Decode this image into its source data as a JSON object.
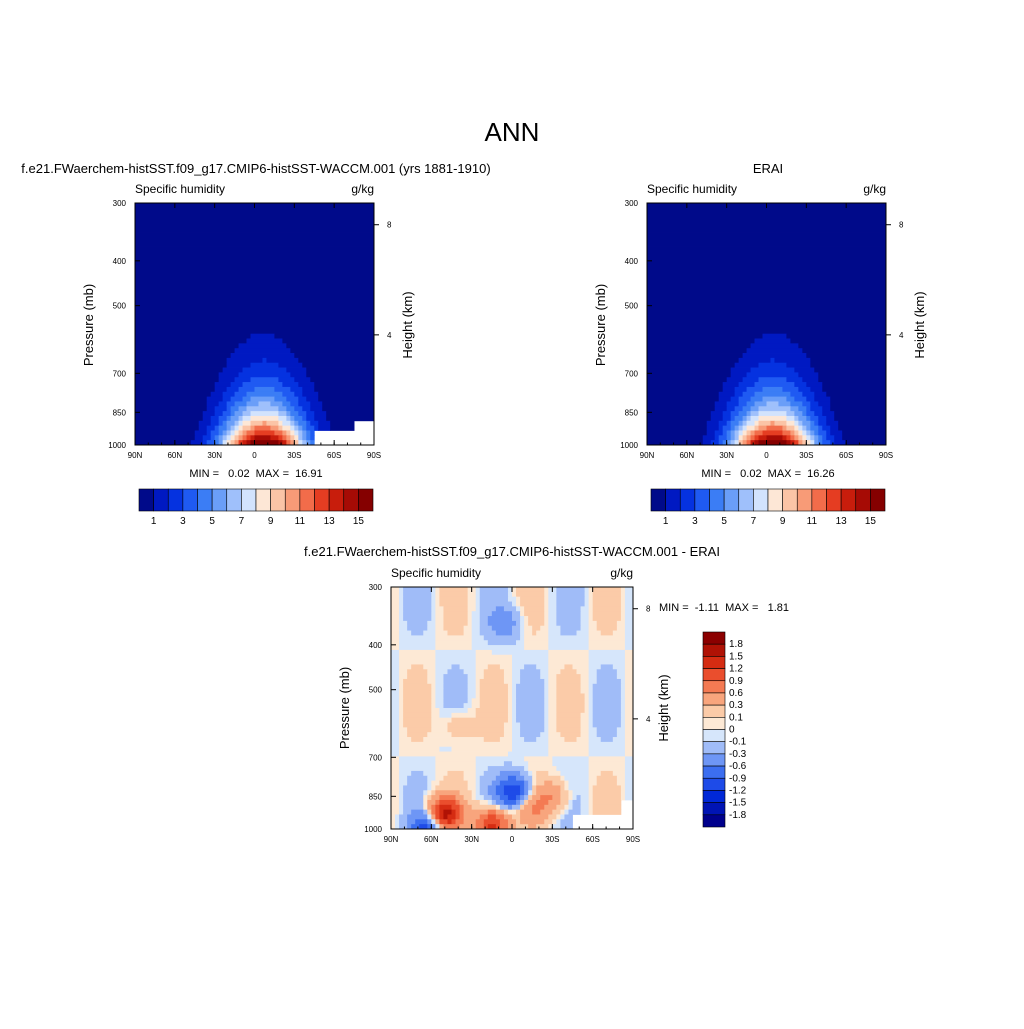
{
  "figure": {
    "title": "ANN"
  },
  "panel_titles": {
    "model": "f.e21.FWaerchem-histSST.f09_g17.CMIP6-histSST-WACCM.001 (yrs 1881-1910)",
    "obs": "ERAI",
    "diff": "f.e21.FWaerchem-histSST.f09_g17.CMIP6-histSST-WACCM.001 - ERAI"
  },
  "colors": {
    "abs_levels": [
      "#000a8a",
      "#0019c2",
      "#0532e0",
      "#1f5af2",
      "#3b7df5",
      "#6a9ef8",
      "#9fc0fb",
      "#d2e3fd",
      "#fde7d6",
      "#fbc4a6",
      "#f89b77",
      "#f26c4a",
      "#e53d22",
      "#c81d0c",
      "#a60b05",
      "#850000"
    ],
    "diff_levels": [
      "#00008c",
      "#0014b4",
      "#0028d7",
      "#1e4be8",
      "#3c6ef0",
      "#6e96f5",
      "#a0bcf8",
      "#d6e6fb",
      "#fde9d5",
      "#fbcba8",
      "#f8a57d",
      "#f47a53",
      "#ea4e2d",
      "#d52c12",
      "#b01205",
      "#8b0000"
    ]
  },
  "chart_data": [
    {
      "type": "contour",
      "name": "model",
      "variable": "Specific humidity",
      "units": "g/kg",
      "xlabel": "",
      "ylabel": "Pressure (mb)",
      "y2label": "Height (km)",
      "xticks": [
        "90N",
        "60N",
        "30N",
        "0",
        "30S",
        "60S",
        "90S"
      ],
      "yticks": [
        "300",
        "400",
        "500",
        "700",
        "850",
        "1000"
      ],
      "y2ticks": [
        "8",
        "4"
      ],
      "ylim": [
        300,
        1000
      ],
      "ylog": true,
      "peak_lat": -7,
      "min": 0.02,
      "max": 16.91,
      "stats_label": "MIN =   0.02  MAX =  16.91",
      "masked_region": "south polar surface (lat 50S-90S, p > 900 mb)",
      "colorbar": {
        "orientation": "horizontal",
        "labels": [
          "1",
          "3",
          "5",
          "7",
          "9",
          "11",
          "13",
          "15"
        ]
      }
    },
    {
      "type": "contour",
      "name": "obs",
      "variable": "Specific humidity",
      "units": "g/kg",
      "xlabel": "",
      "ylabel": "Pressure (mb)",
      "y2label": "Height (km)",
      "xticks": [
        "90N",
        "60N",
        "30N",
        "0",
        "30S",
        "60S",
        "90S"
      ],
      "yticks": [
        "300",
        "400",
        "500",
        "700",
        "850",
        "1000"
      ],
      "y2ticks": [
        "8",
        "4"
      ],
      "ylim": [
        300,
        1000
      ],
      "ylog": true,
      "peak_lat": -5,
      "min": 0.02,
      "max": 16.26,
      "stats_label": "MIN =   0.02  MAX =  16.26",
      "colorbar": {
        "orientation": "horizontal",
        "labels": [
          "1",
          "3",
          "5",
          "7",
          "9",
          "11",
          "13",
          "15"
        ]
      }
    },
    {
      "type": "contour",
      "name": "diff",
      "variable": "Specific humidity",
      "units": "g/kg",
      "xlabel": "",
      "ylabel": "Pressure (mb)",
      "y2label": "Height (km)",
      "xticks": [
        "90N",
        "60N",
        "30N",
        "0",
        "30S",
        "60S",
        "90S"
      ],
      "yticks": [
        "300",
        "400",
        "500",
        "700",
        "850",
        "1000"
      ],
      "y2ticks": [
        "8",
        "4"
      ],
      "ylim": [
        300,
        1000
      ],
      "ylog": true,
      "min": -1.11,
      "max": 1.81,
      "stats_label": "MIN =  -1.11  MAX =   1.81",
      "features": [
        {
          "lat": -30,
          "p": 850,
          "value": 0.4
        },
        {
          "lat": 50,
          "p": 930,
          "value": 1.5
        },
        {
          "lat": 15,
          "p": 980,
          "value": 1.2
        },
        {
          "lat": -1,
          "p": 830,
          "value": -1.0
        },
        {
          "lat": 62,
          "p": 1000,
          "value": -1.0
        },
        {
          "lat": 5,
          "p": 360,
          "value": -0.3
        },
        {
          "lat": -15,
          "p": 900,
          "value": 0.4
        },
        {
          "lat": 40,
          "p": 600,
          "value": 0.2
        }
      ],
      "colorbar": {
        "orientation": "vertical",
        "labels": [
          "1.8",
          "1.5",
          "1.2",
          "0.9",
          "0.6",
          "0.3",
          "0.1",
          "0",
          "-0.1",
          "-0.3",
          "-0.6",
          "-0.9",
          "-1.2",
          "-1.5",
          "-1.8"
        ]
      }
    }
  ]
}
